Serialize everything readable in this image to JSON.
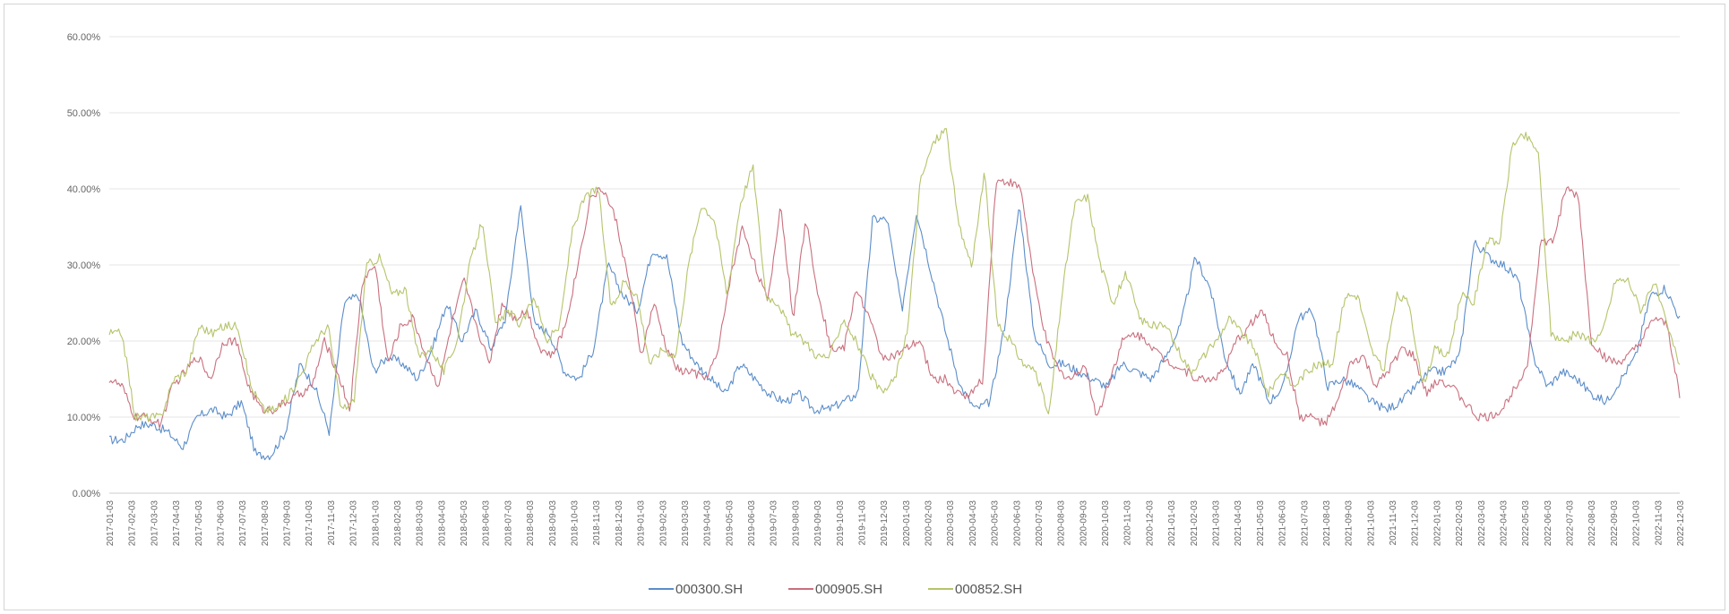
{
  "chart_data": {
    "type": "line",
    "title": "",
    "xlabel": "",
    "ylabel": "",
    "ylim": [
      0,
      0.6
    ],
    "y_ticks": [
      "0.00%",
      "10.00%",
      "20.00%",
      "30.00%",
      "40.00%",
      "50.00%",
      "60.00%"
    ],
    "grid": "horizontal",
    "legend_position": "bottom-center",
    "x_ticks": [
      "2017-01-03",
      "2017-02-03",
      "2017-03-03",
      "2017-04-03",
      "2017-05-03",
      "2017-06-03",
      "2017-07-03",
      "2017-08-03",
      "2017-09-03",
      "2017-10-03",
      "2017-11-03",
      "2017-12-03",
      "2018-01-03",
      "2018-02-03",
      "2018-03-03",
      "2018-04-03",
      "2018-05-03",
      "2018-06-03",
      "2018-07-03",
      "2018-08-03",
      "2018-09-03",
      "2018-10-03",
      "2018-11-03",
      "2018-12-03",
      "2019-01-03",
      "2019-02-03",
      "2019-03-03",
      "2019-04-03",
      "2019-05-03",
      "2019-06-03",
      "2019-07-03",
      "2019-08-03",
      "2019-09-03",
      "2019-10-03",
      "2019-11-03",
      "2019-12-03",
      "2020-01-03",
      "2020-02-03",
      "2020-03-03",
      "2020-04-03",
      "2020-05-03",
      "2020-06-03",
      "2020-07-03",
      "2020-08-03",
      "2020-09-03",
      "2020-10-03",
      "2020-11-03",
      "2020-12-03",
      "2021-01-03",
      "2021-02-03",
      "2021-03-03",
      "2021-04-03",
      "2021-05-03",
      "2021-06-03",
      "2021-07-03",
      "2021-08-03",
      "2021-09-03",
      "2021-10-03",
      "2021-11-03",
      "2021-12-03",
      "2022-01-03",
      "2022-02-03",
      "2022-03-03",
      "2022-04-03",
      "2022-05-03",
      "2022-06-03",
      "2022-07-03",
      "2022-08-03",
      "2022-09-03",
      "2022-10-03",
      "2022-11-03",
      "2022-12-03"
    ],
    "series": [
      {
        "name": "000300.SH",
        "color": "#5b8dc9",
        "values": [
          0.07,
          0.07,
          0.09,
          0.09,
          0.08,
          0.06,
          0.1,
          0.11,
          0.1,
          0.12,
          0.05,
          0.05,
          0.08,
          0.17,
          0.14,
          0.08,
          0.25,
          0.26,
          0.16,
          0.18,
          0.17,
          0.15,
          0.19,
          0.25,
          0.2,
          0.24,
          0.19,
          0.23,
          0.38,
          0.22,
          0.21,
          0.16,
          0.15,
          0.19,
          0.3,
          0.26,
          0.24,
          0.32,
          0.31,
          0.2,
          0.17,
          0.15,
          0.13,
          0.17,
          0.15,
          0.13,
          0.12,
          0.13,
          0.11,
          0.11,
          0.12,
          0.13,
          0.36,
          0.36,
          0.24,
          0.37,
          0.29,
          0.21,
          0.14,
          0.11,
          0.12,
          0.22,
          0.38,
          0.21,
          0.17,
          0.17,
          0.16,
          0.15,
          0.14,
          0.17,
          0.16,
          0.15,
          0.18,
          0.22,
          0.31,
          0.27,
          0.18,
          0.13,
          0.17,
          0.12,
          0.14,
          0.23,
          0.24,
          0.14,
          0.15,
          0.14,
          0.12,
          0.11,
          0.12,
          0.14,
          0.16,
          0.16,
          0.18,
          0.33,
          0.31,
          0.3,
          0.28,
          0.18,
          0.14,
          0.16,
          0.15,
          0.13,
          0.12,
          0.15,
          0.18,
          0.26,
          0.27,
          0.23
        ]
      },
      {
        "name": "000905.SH",
        "color": "#c9707e",
        "values": [
          0.15,
          0.14,
          0.1,
          0.1,
          0.09,
          0.14,
          0.16,
          0.18,
          0.15,
          0.2,
          0.2,
          0.14,
          0.11,
          0.11,
          0.12,
          0.13,
          0.14,
          0.2,
          0.16,
          0.11,
          0.28,
          0.3,
          0.17,
          0.22,
          0.23,
          0.18,
          0.14,
          0.22,
          0.28,
          0.22,
          0.17,
          0.25,
          0.23,
          0.24,
          0.19,
          0.18,
          0.22,
          0.3,
          0.39,
          0.4,
          0.36,
          0.28,
          0.18,
          0.25,
          0.19,
          0.16,
          0.16,
          0.15,
          0.18,
          0.28,
          0.35,
          0.3,
          0.25,
          0.38,
          0.23,
          0.36,
          0.26,
          0.19,
          0.19,
          0.27,
          0.23,
          0.18,
          0.18,
          0.19,
          0.2,
          0.15,
          0.15,
          0.13,
          0.13,
          0.15,
          0.41,
          0.41,
          0.4,
          0.28,
          0.2,
          0.16,
          0.15,
          0.17,
          0.1,
          0.15,
          0.2,
          0.21,
          0.2,
          0.18,
          0.17,
          0.16,
          0.15,
          0.15,
          0.16,
          0.2,
          0.22,
          0.24,
          0.2,
          0.18,
          0.1,
          0.1,
          0.09,
          0.12,
          0.17,
          0.18,
          0.14,
          0.16,
          0.19,
          0.18,
          0.13,
          0.15,
          0.14,
          0.12,
          0.1,
          0.1,
          0.11,
          0.14,
          0.17,
          0.33,
          0.33,
          0.4,
          0.39,
          0.2,
          0.18,
          0.17,
          0.18,
          0.2,
          0.23,
          0.22,
          0.13
        ]
      },
      {
        "name": "000852.SH",
        "color": "#b5c46a",
        "values": [
          0.21,
          0.21,
          0.1,
          0.1,
          0.1,
          0.15,
          0.16,
          0.22,
          0.21,
          0.22,
          0.22,
          0.14,
          0.11,
          0.11,
          0.13,
          0.16,
          0.2,
          0.22,
          0.11,
          0.12,
          0.3,
          0.31,
          0.26,
          0.27,
          0.18,
          0.19,
          0.16,
          0.2,
          0.3,
          0.36,
          0.22,
          0.24,
          0.22,
          0.26,
          0.2,
          0.22,
          0.35,
          0.39,
          0.4,
          0.24,
          0.28,
          0.26,
          0.17,
          0.19,
          0.18,
          0.3,
          0.38,
          0.36,
          0.26,
          0.38,
          0.43,
          0.26,
          0.25,
          0.21,
          0.2,
          0.18,
          0.18,
          0.23,
          0.2,
          0.16,
          0.13,
          0.15,
          0.21,
          0.41,
          0.46,
          0.48,
          0.35,
          0.3,
          0.42,
          0.22,
          0.2,
          0.17,
          0.16,
          0.1,
          0.26,
          0.38,
          0.39,
          0.3,
          0.25,
          0.29,
          0.23,
          0.22,
          0.22,
          0.19,
          0.16,
          0.18,
          0.2,
          0.23,
          0.21,
          0.19,
          0.13,
          0.16,
          0.14,
          0.16,
          0.17,
          0.17,
          0.26,
          0.26,
          0.19,
          0.16,
          0.26,
          0.25,
          0.14,
          0.19,
          0.18,
          0.26,
          0.25,
          0.33,
          0.33,
          0.46,
          0.47,
          0.45,
          0.21,
          0.2,
          0.21,
          0.2,
          0.21,
          0.28,
          0.28,
          0.24,
          0.28,
          0.22,
          0.17
        ]
      }
    ]
  }
}
